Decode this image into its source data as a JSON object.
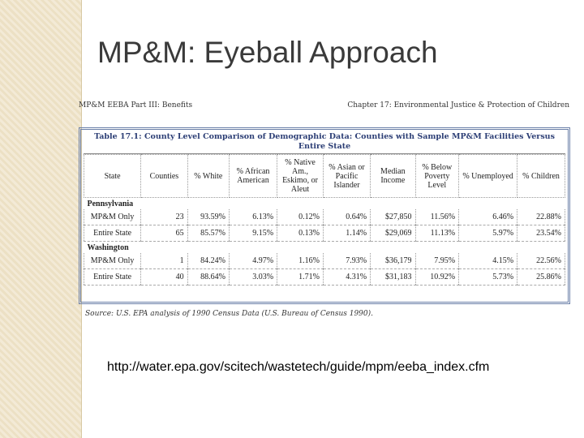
{
  "slide": {
    "title": "MP&M:  Eyeball Approach",
    "url": "http://water.epa.gov/scitech/wastetech/guide/mpm/eeba_index.cfm"
  },
  "document": {
    "header_left": "MP&M EEBA Part III: Benefits",
    "header_right": "Chapter 17: Environmental Justice & Protection of Children",
    "table": {
      "caption": "Table 17.1: County Level Comparison of Demographic Data: Counties with Sample MP&M Facilities Versus Entire State",
      "columns": [
        "State",
        "Counties",
        "% White",
        "% African American",
        "% Native Am., Eskimo, or Aleut",
        "% Asian or Pacific Islander",
        "Median Income",
        "% Below Poverty Level",
        "% Unemployed",
        "% Children"
      ],
      "sections": [
        {
          "name": "Pennsylvania",
          "rows": [
            [
              "MP&M Only",
              "23",
              "93.59%",
              "6.13%",
              "0.12%",
              "0.64%",
              "$27,850",
              "11.56%",
              "6.46%",
              "22.88%"
            ],
            [
              "Entire State",
              "65",
              "85.57%",
              "9.15%",
              "0.13%",
              "1.14%",
              "$29,069",
              "11.13%",
              "5.97%",
              "23.54%"
            ]
          ]
        },
        {
          "name": "Washington",
          "rows": [
            [
              "MP&M Only",
              "1",
              "84.24%",
              "4.97%",
              "1.16%",
              "7.93%",
              "$36,179",
              "7.95%",
              "4.15%",
              "22.56%"
            ],
            [
              "Entire State",
              "40",
              "88.64%",
              "3.03%",
              "1.71%",
              "4.31%",
              "$31,183",
              "10.92%",
              "5.73%",
              "25.86%"
            ]
          ]
        }
      ],
      "source": "Source:   U.S. EPA analysis of 1990 Census Data (U.S. Bureau of Census 1990)."
    }
  }
}
